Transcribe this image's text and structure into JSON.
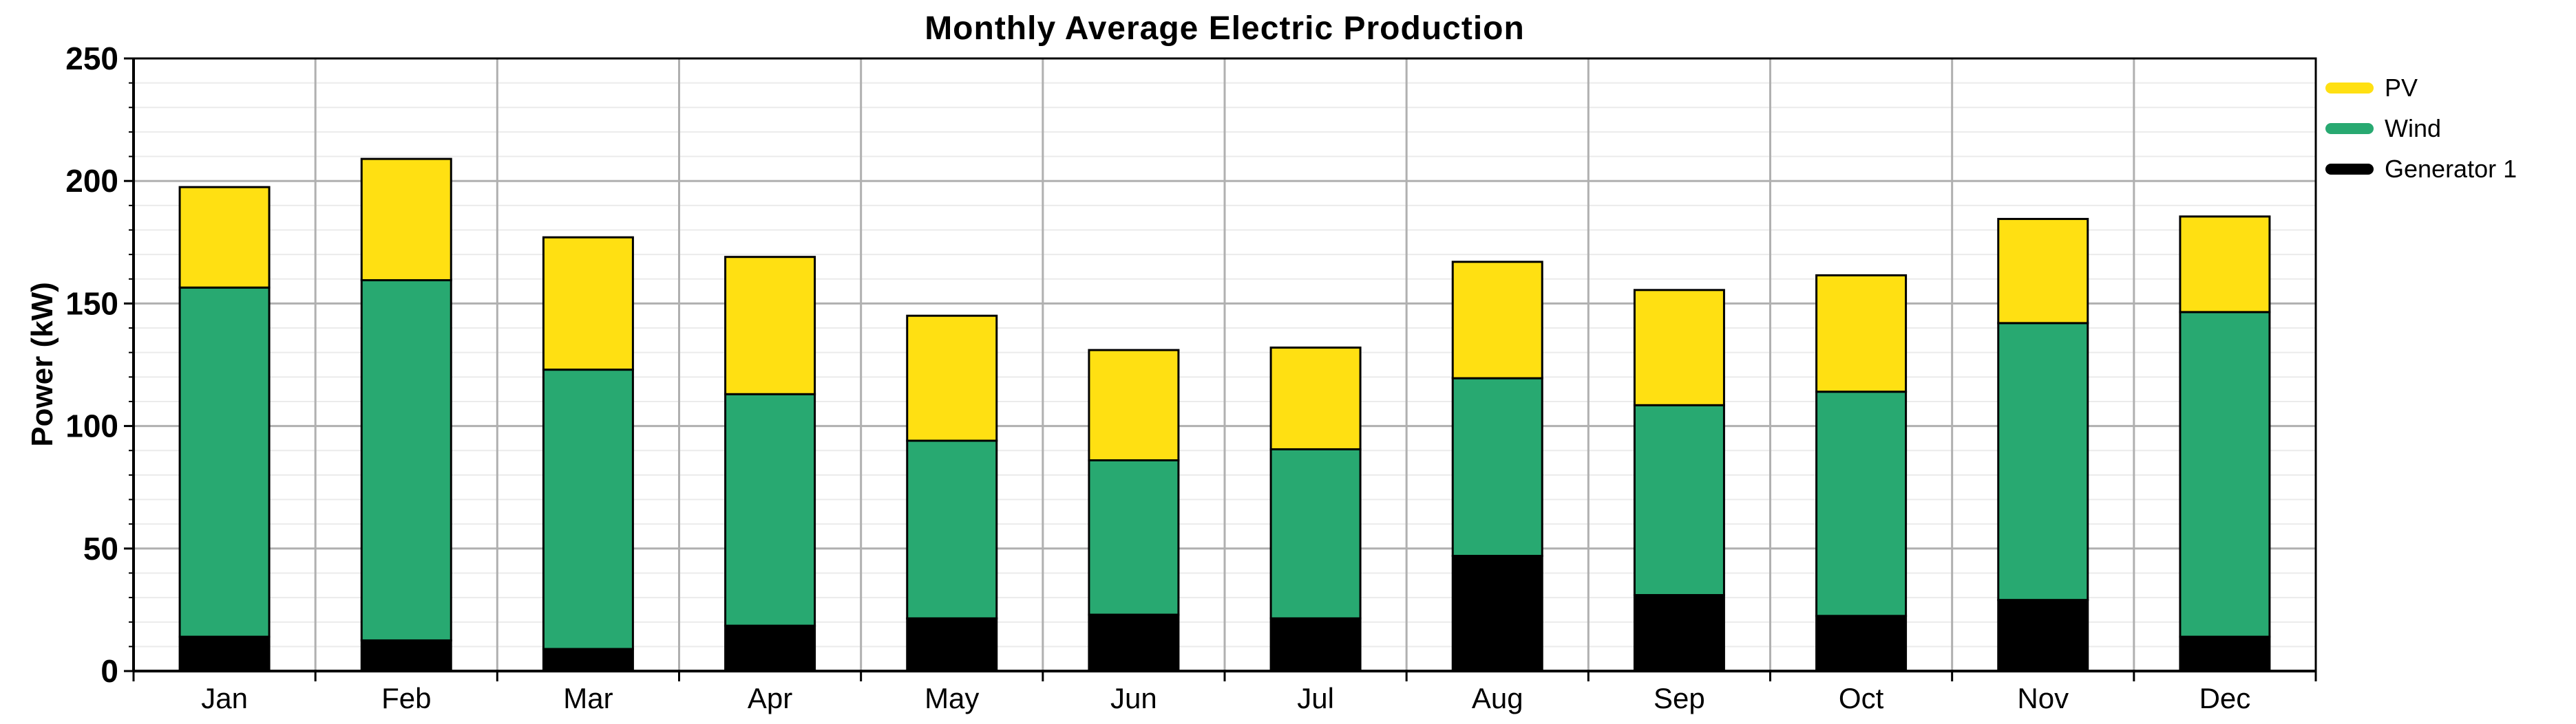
{
  "title": "Monthly Average Electric Production",
  "y_axis": {
    "label": "Power (kW)",
    "tick_labels": [
      "0",
      "50",
      "100",
      "150",
      "200",
      "250"
    ],
    "min": 0,
    "max": 250,
    "major_step": 50,
    "minor_step": 10
  },
  "x_axis": {
    "tick_labels": [
      "Jan",
      "Feb",
      "Mar",
      "Apr",
      "May",
      "Jun",
      "Jul",
      "Aug",
      "Sep",
      "Oct",
      "Nov",
      "Dec"
    ]
  },
  "legend": [
    {
      "label": "PV",
      "color": "#FFE012"
    },
    {
      "label": "Wind",
      "color": "#28A971"
    },
    {
      "label": "Generator 1",
      "color": "#000000"
    }
  ],
  "colors": {
    "pv": "#FFE012",
    "wind": "#28A971",
    "generator": "#000000",
    "grid_major": "#b0b0b0",
    "grid_minor": "#ebebeb",
    "axis": "#000000"
  },
  "chart_data": {
    "type": "bar",
    "stacked": true,
    "title": "Monthly Average Electric Production",
    "xlabel": "",
    "ylabel": "Power (kW)",
    "ylim": [
      0,
      250
    ],
    "y_major_step": 50,
    "y_minor_step": 10,
    "grid": true,
    "legend_position": "top-right-outside",
    "categories": [
      "Jan",
      "Feb",
      "Mar",
      "Apr",
      "May",
      "Jun",
      "Jul",
      "Aug",
      "Sep",
      "Oct",
      "Nov",
      "Dec"
    ],
    "series": [
      {
        "name": "Generator 1",
        "color": "#000000",
        "values": [
          14,
          12.5,
          9,
          18.5,
          21.5,
          23,
          21.5,
          47,
          31,
          22.5,
          29,
          14
        ]
      },
      {
        "name": "Wind",
        "color": "#28A971",
        "values": [
          142.5,
          147,
          114,
          94.5,
          72.5,
          63,
          69,
          72.5,
          77.5,
          91.5,
          113,
          132.5
        ]
      },
      {
        "name": "PV",
        "color": "#FFE012",
        "values": [
          41,
          49.5,
          54,
          56,
          51,
          45,
          41.5,
          47.5,
          47,
          47.5,
          42.5,
          39
        ]
      }
    ],
    "totals": [
      197.5,
      209,
      177,
      169,
      145,
      131,
      132,
      167,
      155.5,
      161.5,
      184.5,
      185.5
    ]
  }
}
